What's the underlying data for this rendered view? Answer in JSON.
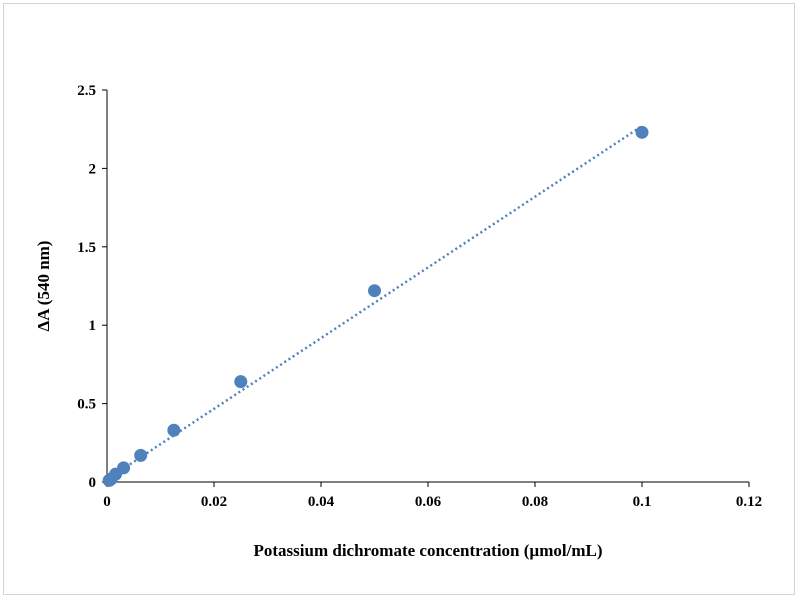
{
  "chart_data": {
    "type": "scatter",
    "title": "",
    "xlabel": "Potassium dichromate concentration (µmol/mL)",
    "ylabel": "ΔA (540 nm)",
    "xlim": [
      0,
      0.12
    ],
    "ylim": [
      0,
      2.5
    ],
    "xticks": [
      0,
      0.02,
      0.04,
      0.06,
      0.08,
      0.1,
      0.12
    ],
    "xtick_labels": [
      "0",
      "0.02",
      "0.04",
      "0.06",
      "0.08",
      "0.1",
      "0.12"
    ],
    "yticks": [
      0,
      0.5,
      1,
      1.5,
      2,
      2.5
    ],
    "ytick_labels": [
      "0",
      "0.5",
      "1",
      "1.5",
      "2",
      "2.5"
    ],
    "grid": false,
    "legend": "none",
    "series": [
      {
        "x": [
          0.0004,
          0.0008,
          0.0016,
          0.0031,
          0.0063,
          0.0125,
          0.025,
          0.05,
          0.1
        ],
        "y": [
          0.01,
          0.02,
          0.05,
          0.09,
          0.17,
          0.33,
          0.64,
          1.22,
          2.23
        ],
        "color": "#4f81bd",
        "marker": "circle"
      }
    ],
    "trendline": {
      "style": "dotted",
      "color": "#4f81bd",
      "x": [
        0.0004,
        0.1
      ],
      "y": [
        0.025,
        2.27
      ]
    }
  }
}
